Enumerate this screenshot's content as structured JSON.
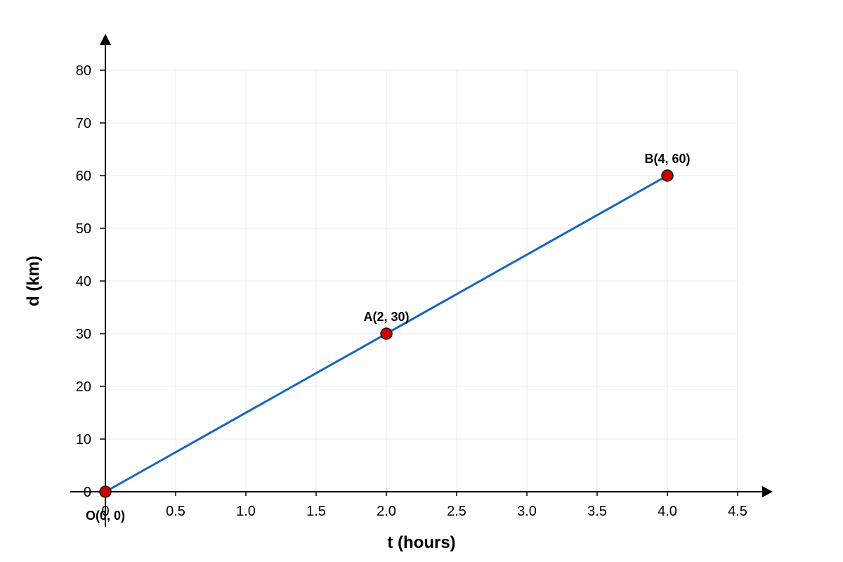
{
  "chart_data": {
    "type": "line",
    "title": "",
    "xlabel": "t (hours)",
    "ylabel": "d (km)",
    "xlim": [
      0,
      4.5
    ],
    "ylim": [
      0,
      80
    ],
    "x_ticks": [
      0,
      0.5,
      1.0,
      1.5,
      2.0,
      2.5,
      3.0,
      3.5,
      4.0,
      4.5
    ],
    "x_tick_labels": [
      "0",
      "0.5",
      "1.0",
      "1.5",
      "2.0",
      "2.5",
      "3.0",
      "3.5",
      "4.0",
      "4.5"
    ],
    "y_ticks": [
      0,
      10,
      20,
      30,
      40,
      50,
      60,
      70,
      80
    ],
    "y_tick_labels": [
      "0",
      "10",
      "20",
      "30",
      "40",
      "50",
      "60",
      "70",
      "80"
    ],
    "grid": true,
    "legend": "none",
    "series": [
      {
        "x": [
          0,
          4
        ],
        "y": [
          0,
          60
        ],
        "color": "#1565c0"
      }
    ],
    "points": [
      {
        "x": 0,
        "y": 0,
        "label": "O(0, 0)",
        "label_placement": "below"
      },
      {
        "x": 2,
        "y": 30,
        "label": "A(2, 30)",
        "label_placement": "above"
      },
      {
        "x": 4,
        "y": 60,
        "label": "B(4, 60)",
        "label_placement": "above"
      }
    ],
    "colors": {
      "line": "#1565c0",
      "point_fill": "#cc0000",
      "point_stroke": "#111111",
      "grid": "#e8e8e8",
      "axis": "#000000"
    }
  }
}
